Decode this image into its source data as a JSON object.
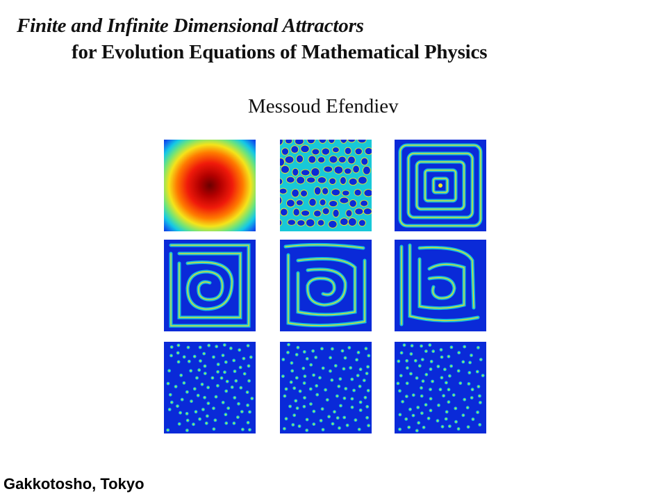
{
  "cover": {
    "title_line_1": "Finite and Infinite Dimensional Attractors",
    "title_line_2": "for Evolution Equations of Mathematical Physics",
    "author": "Messoud Efendiev",
    "publisher": "Gakkotosho, Tokyo"
  },
  "figure_panels": [
    {
      "kind": "radial-blob"
    },
    {
      "kind": "cellular-network"
    },
    {
      "kind": "concentric-squares"
    },
    {
      "kind": "labyrinth-spiral"
    },
    {
      "kind": "labyrinth-spiral"
    },
    {
      "kind": "labyrinth-spiral"
    },
    {
      "kind": "spots"
    },
    {
      "kind": "spots"
    },
    {
      "kind": "spots"
    }
  ],
  "colors": {
    "text": "#111111",
    "field_low": "#0a2ad8",
    "field_mid": "#16c6d9",
    "field_high": "#f5e21c",
    "field_peak": "#e0100c",
    "field_core": "#7a0000"
  }
}
